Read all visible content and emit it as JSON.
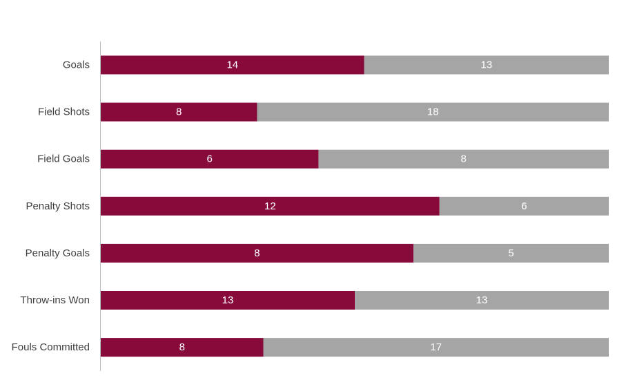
{
  "chart_data": {
    "type": "bar",
    "orientation": "horizontal",
    "stacking": "percent",
    "categories": [
      "Goals",
      "Field Shots",
      "Field Goals",
      "Penalty Shots",
      "Penalty Goals",
      "Throw-ins Won",
      "Fouls Committed"
    ],
    "series": [
      {
        "values": [
          14,
          8,
          6,
          12,
          8,
          13,
          8
        ]
      },
      {
        "values": [
          13,
          18,
          8,
          6,
          5,
          13,
          17
        ]
      }
    ],
    "title": "",
    "xlabel": "",
    "ylabel": "",
    "grid": false,
    "legend": "none",
    "data_labels": true,
    "colors": [
      "#870A3A",
      "#A5A5A5"
    ],
    "axis_color": "#BFBFBF",
    "label_color": "#404040",
    "data_label_color": "#FFFFFF"
  }
}
